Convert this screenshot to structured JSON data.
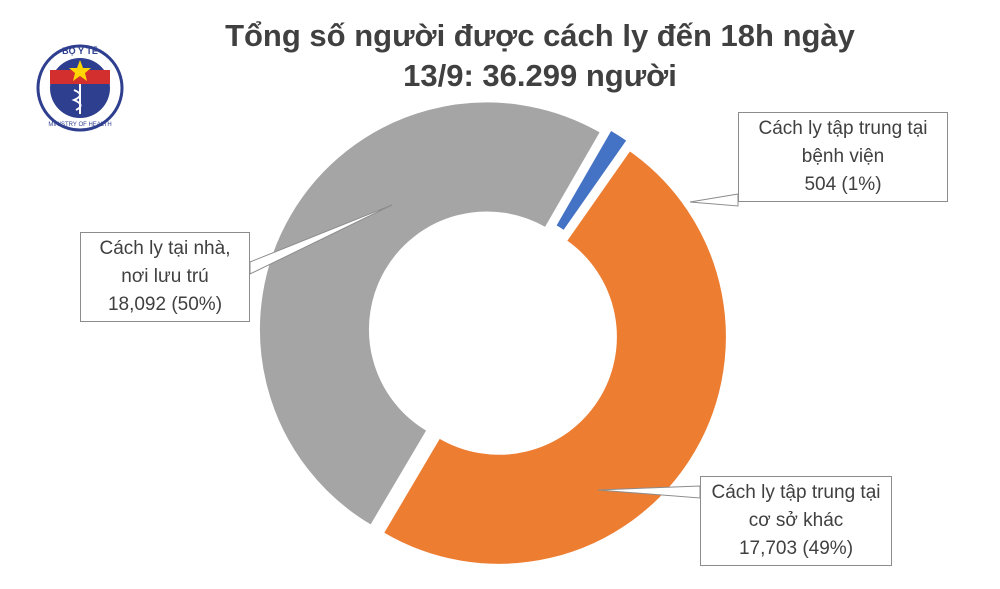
{
  "logo": {
    "top": "BỘ Y TẾ",
    "bottom": "MINISTRY OF HEALTH"
  },
  "chart_data": {
    "type": "donut",
    "title": [
      "Tổng số người được cách ly đến 18h ngày",
      "13/9: 36.299 người"
    ],
    "categories": [
      "Cách ly tập trung tại bệnh viện",
      "Cách ly tập trung tại cơ sở khác",
      "Cách ly tại nhà, nơi lưu trú"
    ],
    "values": [
      504,
      17703,
      18092
    ],
    "value_labels": [
      "504 (1%)",
      "17,703 (49%)",
      "18,092 (50%)"
    ],
    "colors": [
      "#4472c4",
      "#ed7d31",
      "#a5a5a5"
    ]
  }
}
